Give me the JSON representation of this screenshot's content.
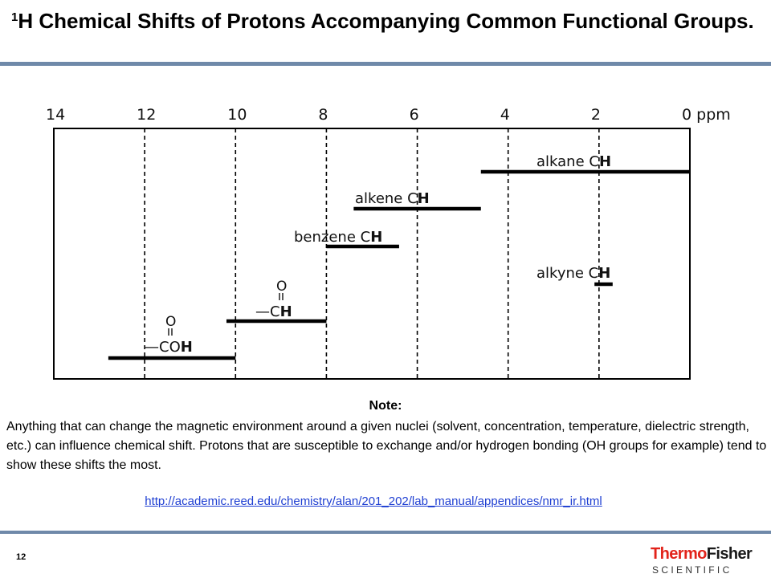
{
  "header": {
    "title_sup": "1",
    "title_text": "H Chemical Shifts of Protons Accompanying Common Functional Groups."
  },
  "chart_data": {
    "type": "range",
    "x_axis_reversed": true,
    "xlim": [
      14,
      0
    ],
    "ticks": [
      14,
      12,
      10,
      8,
      6,
      4,
      2,
      0
    ],
    "tick_labels": [
      "14",
      "12",
      "10",
      "8",
      "6",
      "4",
      "2",
      "0 ppm"
    ],
    "unit": "ppm",
    "gridlines": [
      12,
      10,
      8,
      6,
      4,
      2
    ],
    "grid_style": "dashed",
    "series": [
      {
        "label_prefix": "alkane C",
        "label_bold": "H",
        "start": 0,
        "end": 4.6
      },
      {
        "label_prefix": "alkene C",
        "label_bold": "H",
        "start": 4.6,
        "end": 7.4
      },
      {
        "label_prefix": "benzene C",
        "label_bold": "H",
        "start": 6.4,
        "end": 8.0
      },
      {
        "label_prefix": "alkyne C",
        "label_bold": "H",
        "start": 1.7,
        "end": 2.1
      },
      {
        "label_prefix": "—C",
        "label_bold": "H",
        "struct": "O",
        "start": 8.0,
        "end": 10.2
      },
      {
        "label_prefix": "—CO",
        "label_bold": "H",
        "struct": "O",
        "start": 10.0,
        "end": 12.8
      }
    ]
  },
  "note": {
    "heading": "Note:",
    "body": "Anything that can change the magnetic environment around a given nuclei (solvent, concentration, temperature, dielectric strength, etc.) can influence chemical shift. Protons that are susceptible to exchange and/or hydrogen bonding (OH groups for example) tend to show these shifts the most."
  },
  "source_link": "http://academic.reed.edu/chemistry/alan/201_202/lab_manual/appendices/nmr_ir.html",
  "footer": {
    "page_number": "12",
    "logo_line1_a": "Thermo",
    "logo_line1_b": "Fisher",
    "logo_line2": "S C I E N T I F I C"
  },
  "colors": {
    "rule": "#6f89a9",
    "logo_red": "#e2231a",
    "link": "#1f3fd2"
  }
}
